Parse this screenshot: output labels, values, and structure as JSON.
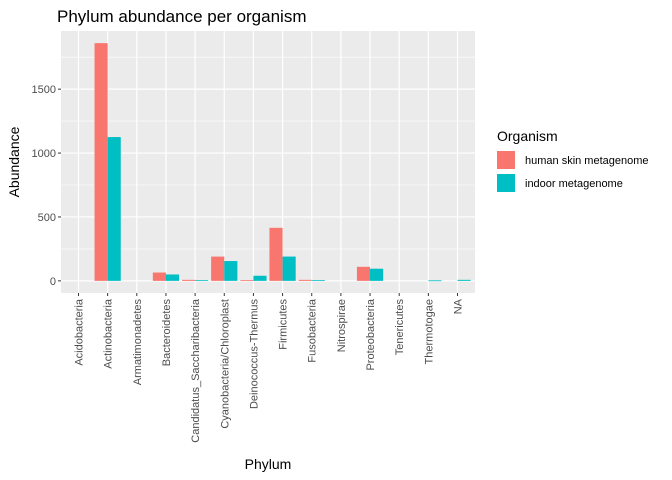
{
  "chart_data": {
    "type": "bar",
    "title": "Phylum abundance per organism",
    "xlabel": "Phylum",
    "ylabel": "Abundance",
    "categories": [
      "Acidobacteria",
      "Actinobacteria",
      "Armatimonadetes",
      "Bacteroidetes",
      "Candidatus_Saccharibacteria",
      "Cyanobacteria/Chloroplast",
      "Deinococcus-Thermus",
      "Firmicutes",
      "Fusobacteria",
      "Nitrospirae",
      "Proteobacteria",
      "Tenericutes",
      "Thermotogae",
      "NA"
    ],
    "series": [
      {
        "name": "human skin metagenome",
        "color": "#F8766D",
        "values": [
          0,
          1860,
          0,
          65,
          8,
          190,
          5,
          415,
          8,
          0,
          110,
          0,
          0,
          0
        ]
      },
      {
        "name": "indoor metagenome",
        "color": "#00BFC4",
        "values": [
          0,
          1125,
          0,
          50,
          5,
          155,
          40,
          190,
          5,
          0,
          95,
          0,
          4,
          8
        ]
      }
    ],
    "yticks": [
      0,
      500,
      1000,
      1500
    ],
    "ylim": [
      -95,
      1955
    ],
    "grid": true,
    "legend": {
      "title": "Organism",
      "position": "right"
    }
  }
}
